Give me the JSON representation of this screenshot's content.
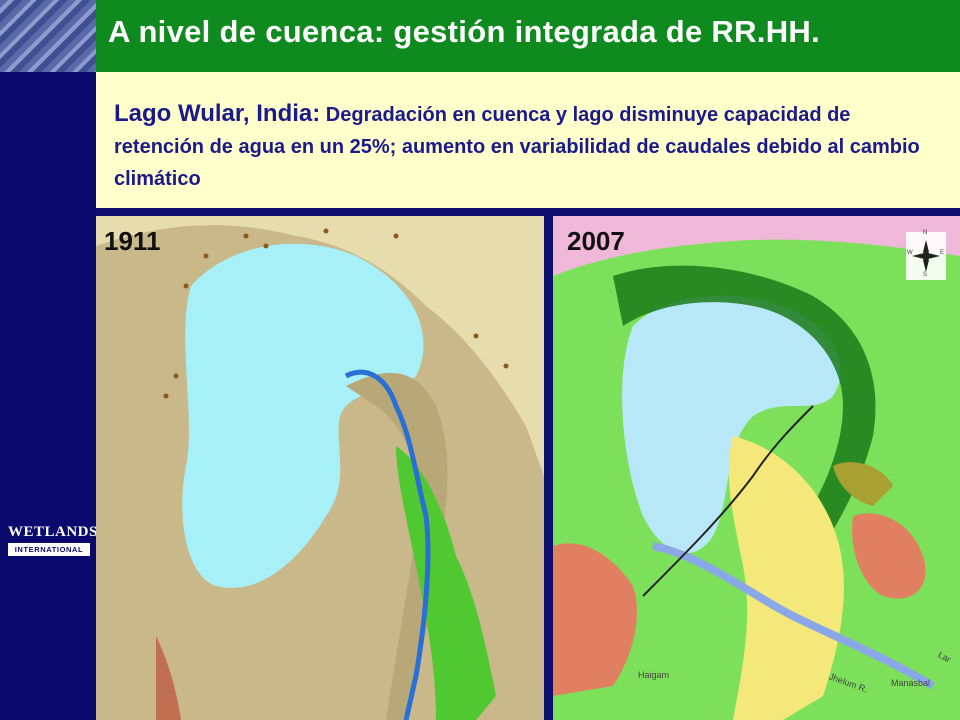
{
  "header": {
    "title": "A nivel de cuenca: gestión integrada de RR.HH."
  },
  "subtitle": {
    "lead": "Lago Wular, India:",
    "text": " Degradación en cuenca y lago disminuye capacidad de retención de agua en un 25%; aumento en variabilidad de caudales debido al cambio climático"
  },
  "maps": {
    "left": {
      "year": "1911"
    },
    "right": {
      "year": "2007",
      "places": {
        "haigam": "Haigam",
        "jhelum": "Jhelum R.",
        "manasbal": "Manasbal",
        "lar": "Lar"
      },
      "compass": {
        "n": "N",
        "s": "S",
        "e": "E",
        "w": "W"
      }
    }
  },
  "logo": {
    "word": "WETLANDS",
    "sub": "INTERNATIONAL"
  }
}
